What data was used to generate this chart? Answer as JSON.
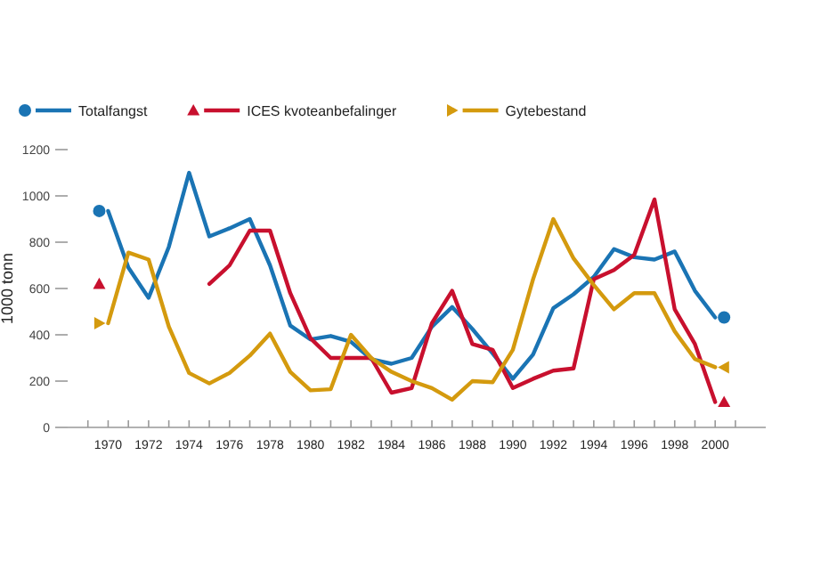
{
  "chart_data": {
    "type": "line",
    "ylabel": "1000 tonn",
    "x": [
      1970,
      1971,
      1972,
      1973,
      1974,
      1975,
      1976,
      1977,
      1978,
      1979,
      1980,
      1981,
      1982,
      1983,
      1984,
      1985,
      1986,
      1987,
      1988,
      1989,
      1990,
      1991,
      1992,
      1993,
      1994,
      1995,
      1996,
      1997,
      1998,
      1999,
      2000
    ],
    "series": [
      {
        "name": "Totalfangst",
        "color": "#1a74b4",
        "values": [
          935,
          690,
          560,
          780,
          1100,
          825,
          860,
          900,
          700,
          440,
          380,
          395,
          370,
          295,
          275,
          300,
          435,
          520,
          425,
          320,
          210,
          315,
          515,
          575,
          650,
          770,
          735,
          725,
          760,
          590,
          475
        ]
      },
      {
        "name": "ICES kvoteanbefalinger",
        "color": "#c8102e",
        "values": [
          null,
          null,
          null,
          null,
          null,
          620,
          700,
          850,
          850,
          580,
          385,
          300,
          300,
          300,
          150,
          170,
          450,
          590,
          360,
          335,
          170,
          210,
          245,
          255,
          640,
          680,
          745,
          985,
          510,
          360,
          110
        ]
      },
      {
        "name": "Gytebestand",
        "color": "#d49a0e",
        "values": [
          450,
          755,
          725,
          435,
          235,
          190,
          235,
          310,
          405,
          240,
          160,
          165,
          400,
          300,
          240,
          200,
          170,
          120,
          200,
          195,
          335,
          640,
          900,
          730,
          615,
          510,
          580,
          580,
          415,
          295,
          260
        ]
      }
    ],
    "xlim": [
      1968,
      2002.5
    ],
    "xticks": [
      {
        "value": 1969,
        "label": null
      },
      1970,
      {
        "value": 1971,
        "label": null
      },
      1972,
      {
        "value": 1973,
        "label": null
      },
      1974,
      {
        "value": 1975,
        "label": null
      },
      1976,
      {
        "value": 1977,
        "label": null
      },
      1978,
      {
        "value": 1979,
        "label": null
      },
      1980,
      {
        "value": 1981,
        "label": null
      },
      1982,
      {
        "value": 1983,
        "label": null
      },
      1984,
      {
        "value": 1985,
        "label": null
      },
      1986,
      {
        "value": 1987,
        "label": null
      },
      1988,
      {
        "value": 1989,
        "label": null
      },
      1990,
      {
        "value": 1991,
        "label": null
      },
      1992,
      {
        "value": 1993,
        "label": null
      },
      1994,
      {
        "value": 1995,
        "label": null
      },
      1996,
      {
        "value": 1997,
        "label": null
      },
      1998,
      {
        "value": 1999,
        "label": null
      },
      2000,
      {
        "value": 2001,
        "label": null
      }
    ],
    "ylim": [
      0,
      1200
    ],
    "yticks": [
      0,
      200,
      400,
      600,
      800,
      1000,
      1200
    ],
    "grid": false,
    "legend": "top left"
  }
}
